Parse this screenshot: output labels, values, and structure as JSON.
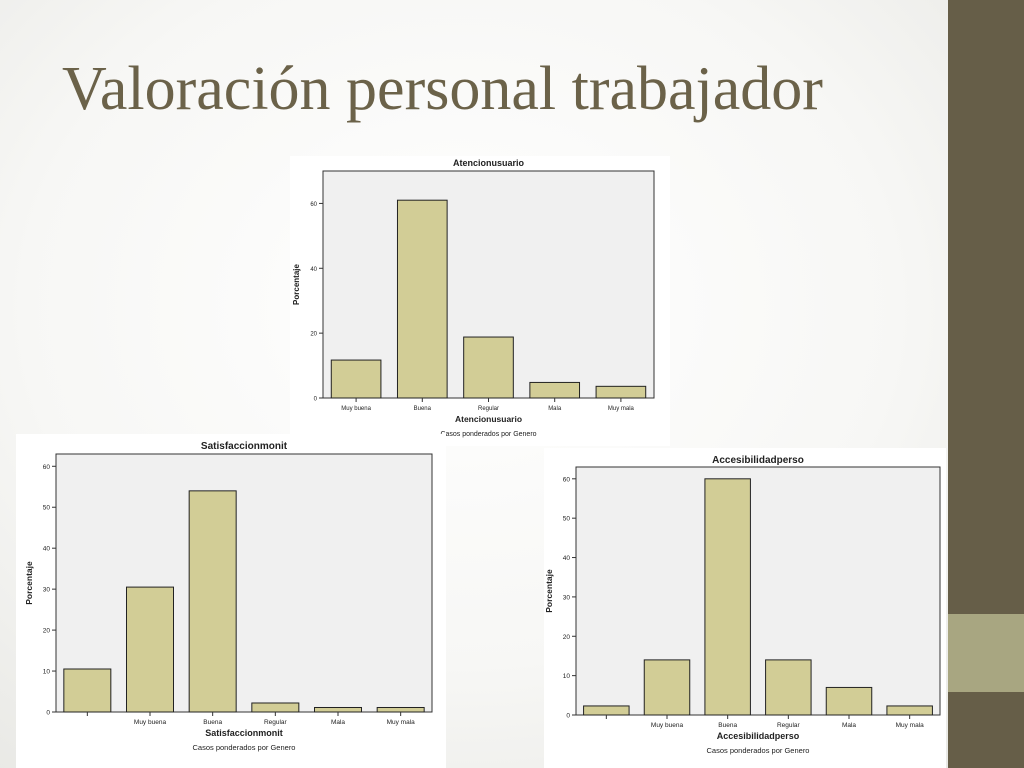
{
  "slide": {
    "title": "Valoración personal trabajador",
    "title_color": "#6b6249",
    "sidebar_color": "#665e48",
    "sidebar_accent_color": "#a8a681"
  },
  "chart_data": [
    {
      "type": "bar",
      "title": "Atencionusuario",
      "xlabel": "Atencionusuario",
      "ylabel": "Porcentaje",
      "footnote": "Casos ponderados por Genero",
      "categories": [
        "Muy buena",
        "Buena",
        "Regular",
        "Mala",
        "Muy mala"
      ],
      "values": [
        11.7,
        61.0,
        18.8,
        4.8,
        3.6
      ],
      "ylim": [
        0,
        70
      ],
      "yticks": [
        0,
        20,
        40,
        60
      ],
      "bar_color": "#d2cd96",
      "plot_bg": "#f0f0f0",
      "grid": false
    },
    {
      "type": "bar",
      "title": "Satisfaccionmonit",
      "xlabel": "Satisfaccionmonit",
      "ylabel": "Porcentaje",
      "footnote": "Casos ponderados por Genero",
      "categories": [
        "",
        "Muy buena",
        "Buena",
        "Regular",
        "Mala",
        "Muy mala"
      ],
      "values": [
        10.5,
        30.5,
        54.0,
        2.2,
        1.1,
        1.1
      ],
      "ylim": [
        0,
        63
      ],
      "yticks": [
        0,
        10,
        20,
        30,
        40,
        50,
        60
      ],
      "bar_color": "#d2cd96",
      "plot_bg": "#f0f0f0",
      "grid": false
    },
    {
      "type": "bar",
      "title": "Accesibilidadperso",
      "xlabel": "Accesibilidadperso",
      "ylabel": "Porcentaje",
      "footnote": "Casos ponderados por Genero",
      "categories": [
        "",
        "Muy buena",
        "Buena",
        "Regular",
        "Mala",
        "Muy mala"
      ],
      "values": [
        2.3,
        14.0,
        60.0,
        14.0,
        7.0,
        2.3
      ],
      "ylim": [
        0,
        63
      ],
      "yticks": [
        0,
        10,
        20,
        30,
        40,
        50,
        60
      ],
      "bar_color": "#d2cd96",
      "plot_bg": "#f0f0f0",
      "grid": false
    }
  ]
}
